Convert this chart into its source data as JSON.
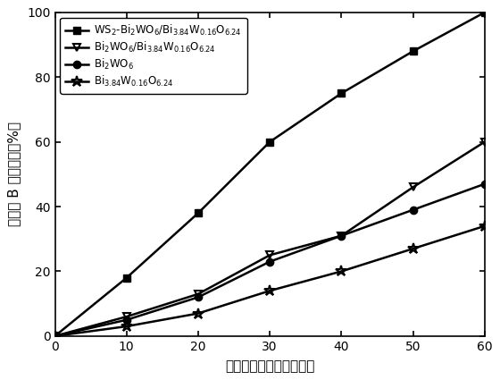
{
  "x": [
    0,
    10,
    20,
    30,
    40,
    50,
    60
  ],
  "series": [
    {
      "label_parts": [
        "WS",
        "2",
        "-Bi",
        "2",
        "WO",
        "6",
        "/Bi",
        "3.84",
        "W",
        "0.16",
        "O",
        "6.24"
      ],
      "label": "WS$_2$-Bi$_2$WO$_6$/Bi$_{3.84}$W$_{0.16}$O$_{6.24}$",
      "y": [
        0,
        18,
        38,
        60,
        75,
        88,
        100
      ],
      "marker": "s",
      "color": "#000000",
      "markersize": 6,
      "fillstyle": "full"
    },
    {
      "label": "Bi$_2$WO$_6$/Bi$_{3.84}$W$_{0.16}$O$_{6.24}$",
      "y": [
        0,
        6,
        13,
        25,
        31,
        46,
        60
      ],
      "marker": "v",
      "color": "#000000",
      "markersize": 6,
      "fillstyle": "none"
    },
    {
      "label": "Bi$_2$WO$_6$",
      "y": [
        0,
        5,
        12,
        23,
        31,
        39,
        47
      ],
      "marker": "o",
      "color": "#000000",
      "markersize": 6,
      "fillstyle": "full"
    },
    {
      "label": "Bi$_{3.84}$W$_{0.16}$O$_{6.24}$",
      "y": [
        0,
        3,
        7,
        14,
        20,
        27,
        34
      ],
      "marker": "*",
      "color": "#000000",
      "markersize": 9,
      "fillstyle": "none"
    }
  ],
  "xlabel_cn": "可见光诱导时间（分钟）",
  "ylabel_cn": "罗丹明 B 的降解率（%）",
  "xlim": [
    0,
    60
  ],
  "ylim": [
    0,
    100
  ],
  "xticks": [
    0,
    10,
    20,
    30,
    40,
    50,
    60
  ],
  "yticks": [
    0,
    20,
    40,
    60,
    80,
    100
  ],
  "background_color": "#ffffff",
  "linewidth": 1.8
}
